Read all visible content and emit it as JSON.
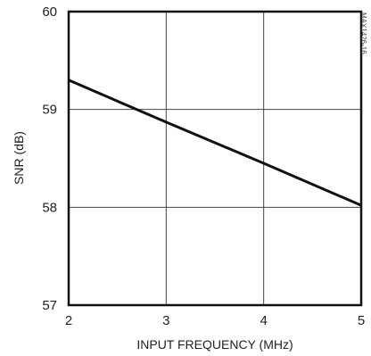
{
  "chart_data": {
    "type": "line",
    "title": "",
    "xlabel": "INPUT FREQUENCY (MHz)",
    "ylabel": "SNR (dB)",
    "xlim": [
      2,
      5
    ],
    "ylim": [
      57,
      60
    ],
    "x_ticks": [
      "2",
      "3",
      "4",
      "5"
    ],
    "y_ticks": [
      "57",
      "58",
      "59",
      "60"
    ],
    "grid": true,
    "figure_id": "MAX1426-16",
    "series": [
      {
        "x": [
          2,
          3,
          4,
          5
        ],
        "values": [
          59.3,
          58.87,
          58.45,
          58.02
        ]
      }
    ]
  },
  "colors": {
    "line": "#111111",
    "grid": "#444444",
    "text": "#222222"
  }
}
